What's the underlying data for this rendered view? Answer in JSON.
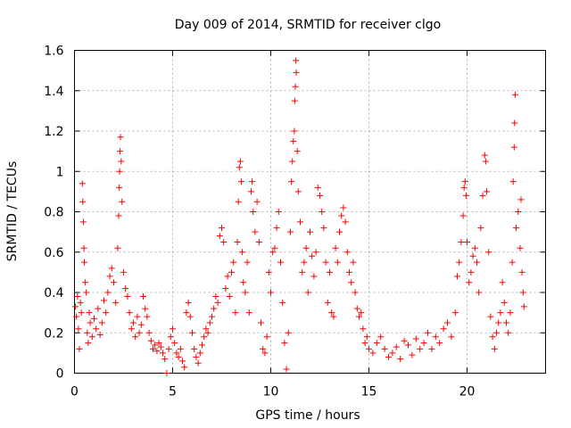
{
  "chart_data": {
    "type": "scatter",
    "title": "Day 009 of 2014, SRMTID for receiver clgo",
    "xlabel": "GPS time / hours",
    "ylabel": "SRMTID / TECUs",
    "xlim": [
      0,
      24
    ],
    "ylim": [
      0,
      1.6
    ],
    "xticks": [
      0,
      5,
      10,
      15,
      20
    ],
    "yticks": [
      0,
      0.2,
      0.4,
      0.6,
      0.8,
      1,
      1.2,
      1.4,
      1.6
    ],
    "xtick_labels": [
      "0",
      "5",
      "10",
      "15",
      "20"
    ],
    "ytick_labels": [
      "0",
      "0.2",
      "0.4",
      "0.6",
      "0.8",
      "1",
      "1.2",
      "1.4",
      "1.6"
    ],
    "grid": true,
    "marker": "plus",
    "series": [
      {
        "name": "SRMTID clgo",
        "color": "#ff0000",
        "points": [
          [
            0.05,
            0.33
          ],
          [
            0.1,
            0.28
          ],
          [
            0.15,
            0.38
          ],
          [
            0.2,
            0.22
          ],
          [
            0.25,
            0.12
          ],
          [
            0.3,
            0.35
          ],
          [
            0.35,
            0.3
          ],
          [
            0.4,
            0.94
          ],
          [
            0.42,
            0.85
          ],
          [
            0.45,
            0.75
          ],
          [
            0.48,
            0.62
          ],
          [
            0.5,
            0.55
          ],
          [
            0.55,
            0.45
          ],
          [
            0.6,
            0.4
          ],
          [
            0.65,
            0.2
          ],
          [
            0.7,
            0.15
          ],
          [
            0.75,
            0.3
          ],
          [
            0.8,
            0.25
          ],
          [
            0.9,
            0.18
          ],
          [
            1.0,
            0.27
          ],
          [
            1.1,
            0.22
          ],
          [
            1.2,
            0.32
          ],
          [
            1.3,
            0.19
          ],
          [
            1.4,
            0.25
          ],
          [
            1.5,
            0.36
          ],
          [
            1.6,
            0.3
          ],
          [
            1.7,
            0.4
          ],
          [
            1.8,
            0.48
          ],
          [
            1.9,
            0.52
          ],
          [
            2.0,
            0.45
          ],
          [
            2.1,
            0.35
          ],
          [
            2.2,
            0.62
          ],
          [
            2.25,
            0.78
          ],
          [
            2.28,
            0.92
          ],
          [
            2.3,
            1.0
          ],
          [
            2.32,
            1.1
          ],
          [
            2.34,
            1.17
          ],
          [
            2.38,
            1.05
          ],
          [
            2.42,
            0.85
          ],
          [
            2.5,
            0.5
          ],
          [
            2.6,
            0.42
          ],
          [
            2.7,
            0.38
          ],
          [
            2.8,
            0.3
          ],
          [
            2.9,
            0.22
          ],
          [
            3.0,
            0.25
          ],
          [
            3.1,
            0.18
          ],
          [
            3.2,
            0.28
          ],
          [
            3.3,
            0.2
          ],
          [
            3.4,
            0.24
          ],
          [
            3.5,
            0.38
          ],
          [
            3.6,
            0.32
          ],
          [
            3.7,
            0.28
          ],
          [
            3.8,
            0.2
          ],
          [
            3.9,
            0.16
          ],
          [
            4.0,
            0.12
          ],
          [
            4.1,
            0.14
          ],
          [
            4.2,
            0.11
          ],
          [
            4.3,
            0.15
          ],
          [
            4.4,
            0.13
          ],
          [
            4.5,
            0.1
          ],
          [
            4.6,
            0.07
          ],
          [
            4.7,
            0.0
          ],
          [
            4.8,
            0.12
          ],
          [
            4.9,
            0.18
          ],
          [
            5.0,
            0.22
          ],
          [
            5.1,
            0.15
          ],
          [
            5.2,
            0.1
          ],
          [
            5.3,
            0.08
          ],
          [
            5.4,
            0.12
          ],
          [
            5.5,
            0.06
          ],
          [
            5.6,
            0.03
          ],
          [
            5.7,
            0.3
          ],
          [
            5.8,
            0.35
          ],
          [
            5.9,
            0.28
          ],
          [
            6.0,
            0.2
          ],
          [
            6.1,
            0.12
          ],
          [
            6.2,
            0.08
          ],
          [
            6.3,
            0.05
          ],
          [
            6.4,
            0.1
          ],
          [
            6.5,
            0.14
          ],
          [
            6.6,
            0.18
          ],
          [
            6.7,
            0.22
          ],
          [
            6.8,
            0.2
          ],
          [
            6.9,
            0.25
          ],
          [
            7.0,
            0.28
          ],
          [
            7.1,
            0.32
          ],
          [
            7.2,
            0.38
          ],
          [
            7.3,
            0.35
          ],
          [
            7.4,
            0.68
          ],
          [
            7.5,
            0.72
          ],
          [
            7.6,
            0.65
          ],
          [
            7.7,
            0.42
          ],
          [
            7.8,
            0.48
          ],
          [
            7.9,
            0.38
          ],
          [
            8.0,
            0.5
          ],
          [
            8.1,
            0.55
          ],
          [
            8.2,
            0.3
          ],
          [
            8.3,
            0.65
          ],
          [
            8.35,
            0.85
          ],
          [
            8.4,
            1.02
          ],
          [
            8.45,
            1.05
          ],
          [
            8.5,
            0.95
          ],
          [
            8.55,
            0.6
          ],
          [
            8.6,
            0.45
          ],
          [
            8.7,
            0.4
          ],
          [
            8.8,
            0.55
          ],
          [
            8.9,
            0.3
          ],
          [
            9.0,
            0.9
          ],
          [
            9.05,
            0.95
          ],
          [
            9.1,
            0.8
          ],
          [
            9.2,
            0.7
          ],
          [
            9.3,
            0.85
          ],
          [
            9.4,
            0.65
          ],
          [
            9.5,
            0.25
          ],
          [
            9.6,
            0.12
          ],
          [
            9.7,
            0.1
          ],
          [
            9.8,
            0.18
          ],
          [
            9.9,
            0.5
          ],
          [
            10.0,
            0.4
          ],
          [
            10.1,
            0.6
          ],
          [
            10.2,
            0.62
          ],
          [
            10.3,
            0.72
          ],
          [
            10.4,
            0.8
          ],
          [
            10.5,
            0.55
          ],
          [
            10.6,
            0.35
          ],
          [
            10.7,
            0.15
          ],
          [
            10.8,
            0.02
          ],
          [
            10.9,
            0.2
          ],
          [
            11.0,
            0.7
          ],
          [
            11.05,
            0.95
          ],
          [
            11.1,
            1.05
          ],
          [
            11.15,
            1.15
          ],
          [
            11.2,
            1.2
          ],
          [
            11.22,
            1.35
          ],
          [
            11.25,
            1.42
          ],
          [
            11.28,
            1.55
          ],
          [
            11.3,
            1.49
          ],
          [
            11.35,
            1.1
          ],
          [
            11.4,
            0.9
          ],
          [
            11.5,
            0.75
          ],
          [
            11.6,
            0.5
          ],
          [
            11.7,
            0.55
          ],
          [
            11.8,
            0.62
          ],
          [
            11.9,
            0.4
          ],
          [
            12.0,
            0.7
          ],
          [
            12.1,
            0.58
          ],
          [
            12.2,
            0.48
          ],
          [
            12.3,
            0.6
          ],
          [
            12.4,
            0.92
          ],
          [
            12.5,
            0.88
          ],
          [
            12.6,
            0.8
          ],
          [
            12.7,
            0.72
          ],
          [
            12.8,
            0.55
          ],
          [
            12.9,
            0.35
          ],
          [
            13.0,
            0.5
          ],
          [
            13.1,
            0.3
          ],
          [
            13.2,
            0.28
          ],
          [
            13.3,
            0.62
          ],
          [
            13.4,
            0.55
          ],
          [
            13.5,
            0.7
          ],
          [
            13.6,
            0.78
          ],
          [
            13.7,
            0.82
          ],
          [
            13.8,
            0.75
          ],
          [
            13.9,
            0.6
          ],
          [
            14.0,
            0.5
          ],
          [
            14.1,
            0.45
          ],
          [
            14.2,
            0.55
          ],
          [
            14.3,
            0.4
          ],
          [
            14.4,
            0.32
          ],
          [
            14.5,
            0.28
          ],
          [
            14.6,
            0.3
          ],
          [
            14.7,
            0.22
          ],
          [
            14.8,
            0.15
          ],
          [
            14.9,
            0.18
          ],
          [
            15.0,
            0.12
          ],
          [
            15.2,
            0.1
          ],
          [
            15.4,
            0.15
          ],
          [
            15.6,
            0.18
          ],
          [
            15.8,
            0.12
          ],
          [
            16.0,
            0.08
          ],
          [
            16.2,
            0.1
          ],
          [
            16.4,
            0.13
          ],
          [
            16.6,
            0.07
          ],
          [
            16.8,
            0.16
          ],
          [
            17.0,
            0.14
          ],
          [
            17.2,
            0.09
          ],
          [
            17.4,
            0.17
          ],
          [
            17.6,
            0.12
          ],
          [
            17.8,
            0.15
          ],
          [
            18.0,
            0.2
          ],
          [
            18.2,
            0.12
          ],
          [
            18.4,
            0.18
          ],
          [
            18.6,
            0.15
          ],
          [
            18.8,
            0.22
          ],
          [
            19.0,
            0.25
          ],
          [
            19.2,
            0.18
          ],
          [
            19.4,
            0.3
          ],
          [
            19.5,
            0.48
          ],
          [
            19.6,
            0.55
          ],
          [
            19.7,
            0.65
          ],
          [
            19.8,
            0.78
          ],
          [
            19.85,
            0.92
          ],
          [
            19.9,
            0.95
          ],
          [
            19.95,
            0.88
          ],
          [
            20.0,
            0.65
          ],
          [
            20.1,
            0.45
          ],
          [
            20.2,
            0.5
          ],
          [
            20.3,
            0.58
          ],
          [
            20.4,
            0.62
          ],
          [
            20.5,
            0.55
          ],
          [
            20.6,
            0.4
          ],
          [
            20.7,
            0.72
          ],
          [
            20.8,
            0.88
          ],
          [
            20.9,
            1.08
          ],
          [
            20.95,
            1.05
          ],
          [
            21.0,
            0.9
          ],
          [
            21.1,
            0.6
          ],
          [
            21.2,
            0.28
          ],
          [
            21.3,
            0.18
          ],
          [
            21.4,
            0.12
          ],
          [
            21.5,
            0.2
          ],
          [
            21.6,
            0.25
          ],
          [
            21.7,
            0.3
          ],
          [
            21.8,
            0.45
          ],
          [
            21.9,
            0.35
          ],
          [
            22.0,
            0.25
          ],
          [
            22.1,
            0.2
          ],
          [
            22.2,
            0.3
          ],
          [
            22.3,
            0.55
          ],
          [
            22.35,
            0.95
          ],
          [
            22.4,
            1.12
          ],
          [
            22.42,
            1.24
          ],
          [
            22.45,
            1.38
          ],
          [
            22.5,
            0.72
          ],
          [
            22.6,
            0.8
          ],
          [
            22.7,
            0.62
          ],
          [
            22.75,
            0.86
          ],
          [
            22.8,
            0.5
          ],
          [
            22.85,
            0.4
          ],
          [
            22.9,
            0.33
          ]
        ]
      }
    ]
  }
}
